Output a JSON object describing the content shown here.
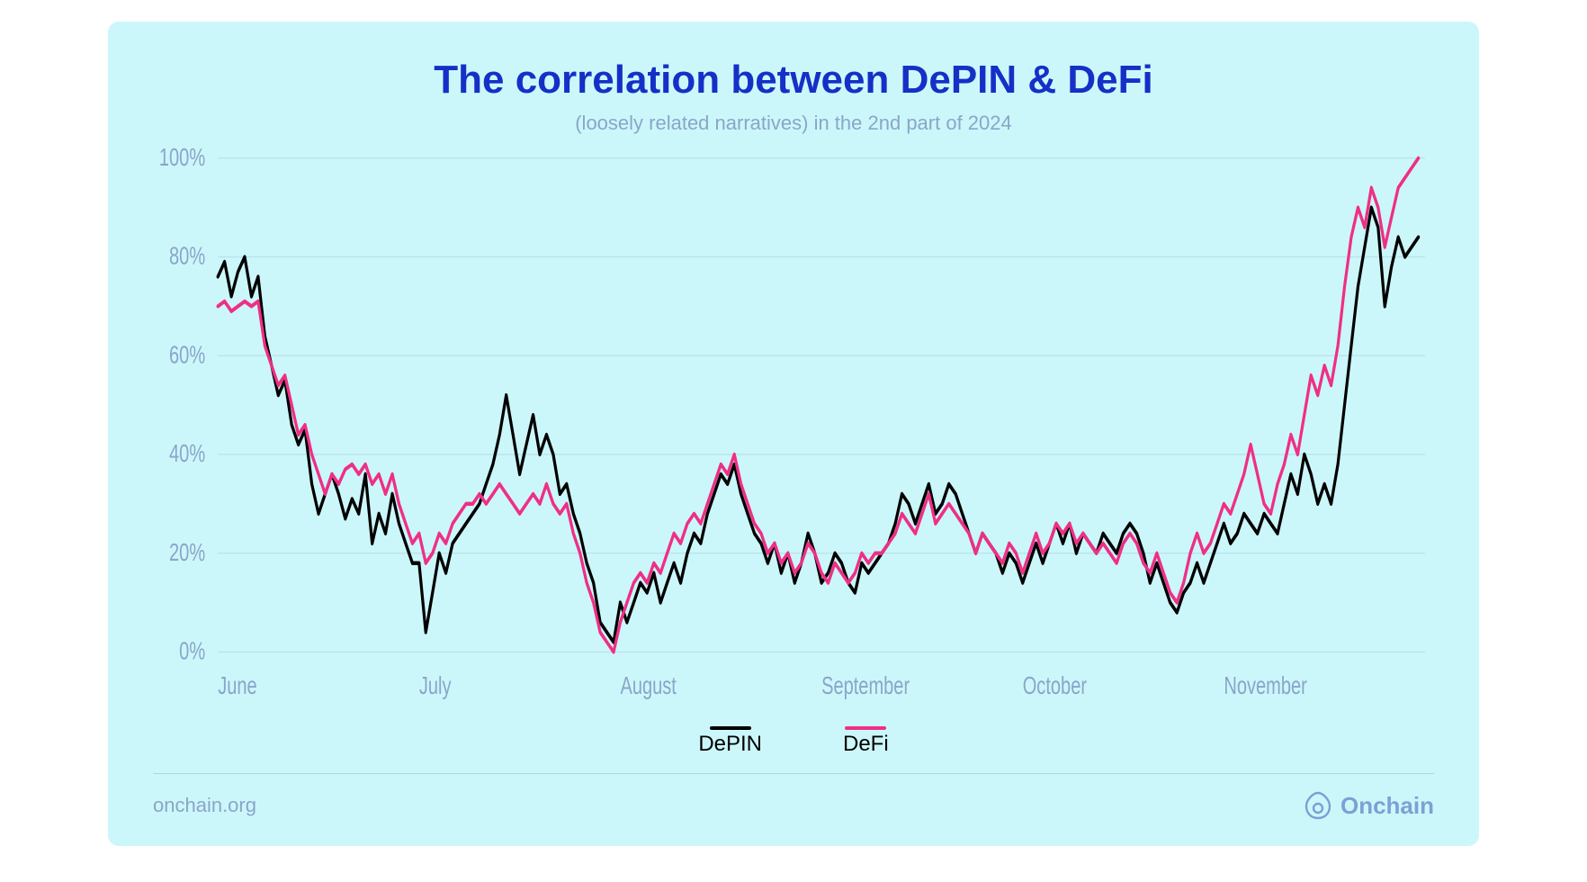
{
  "card": {
    "background_color": "#ccf7fa",
    "title": "The correlation between DePIN & DeFi",
    "title_color": "#1530c7",
    "title_fontsize": 44,
    "subtitle": "(loosely related narratives) in the 2nd part of 2024",
    "subtitle_color": "#8aa5c9",
    "subtitle_fontsize": 22
  },
  "chart": {
    "type": "line",
    "ylim": [
      0,
      100
    ],
    "ytick_step": 20,
    "y_ticks": [
      0,
      20,
      40,
      60,
      80,
      100
    ],
    "y_tick_labels": [
      "0%",
      "20%",
      "40%",
      "60%",
      "80%",
      "100%"
    ],
    "x_categories": [
      "June",
      "July",
      "August",
      "September",
      "October",
      "November"
    ],
    "x_positions": [
      0,
      30,
      60,
      90,
      120,
      150
    ],
    "x_max_index": 180,
    "grid_color": "#7f9cc5",
    "axis_label_color": "#8aa5c9",
    "axis_label_fontsize": 20,
    "line_width": 3.2,
    "series": [
      {
        "name": "DePIN",
        "color": "#000000",
        "values": [
          76,
          79,
          72,
          77,
          80,
          72,
          76,
          64,
          58,
          52,
          55,
          46,
          42,
          45,
          34,
          28,
          32,
          36,
          32,
          27,
          31,
          28,
          36,
          22,
          28,
          24,
          32,
          26,
          22,
          18,
          18,
          4,
          12,
          20,
          16,
          22,
          24,
          26,
          28,
          30,
          34,
          38,
          44,
          52,
          44,
          36,
          42,
          48,
          40,
          44,
          40,
          32,
          34,
          28,
          24,
          18,
          14,
          6,
          4,
          2,
          10,
          6,
          10,
          14,
          12,
          16,
          10,
          14,
          18,
          14,
          20,
          24,
          22,
          28,
          32,
          36,
          34,
          38,
          32,
          28,
          24,
          22,
          18,
          22,
          16,
          20,
          14,
          18,
          24,
          20,
          14,
          16,
          20,
          18,
          14,
          12,
          18,
          16,
          18,
          20,
          22,
          26,
          32,
          30,
          26,
          30,
          34,
          28,
          30,
          34,
          32,
          28,
          24,
          20,
          24,
          22,
          20,
          16,
          20,
          18,
          14,
          18,
          22,
          18,
          22,
          26,
          22,
          26,
          20,
          24,
          22,
          20,
          24,
          22,
          20,
          24,
          26,
          24,
          20,
          14,
          18,
          14,
          10,
          8,
          12,
          14,
          18,
          14,
          18,
          22,
          26,
          22,
          24,
          28,
          26,
          24,
          28,
          26,
          24,
          30,
          36,
          32,
          40,
          36,
          30,
          34,
          30,
          38,
          50,
          62,
          74,
          82,
          90,
          86,
          70,
          78,
          84,
          80,
          82,
          84
        ]
      },
      {
        "name": "DeFi",
        "color": "#ef2f86",
        "values": [
          70,
          71,
          69,
          70,
          71,
          70,
          71,
          62,
          58,
          54,
          56,
          50,
          44,
          46,
          40,
          36,
          32,
          36,
          34,
          37,
          38,
          36,
          38,
          34,
          36,
          32,
          36,
          30,
          26,
          22,
          24,
          18,
          20,
          24,
          22,
          26,
          28,
          30,
          30,
          32,
          30,
          32,
          34,
          32,
          30,
          28,
          30,
          32,
          30,
          34,
          30,
          28,
          30,
          24,
          20,
          14,
          10,
          4,
          2,
          0,
          6,
          10,
          14,
          16,
          14,
          18,
          16,
          20,
          24,
          22,
          26,
          28,
          26,
          30,
          34,
          38,
          36,
          40,
          34,
          30,
          26,
          24,
          20,
          22,
          18,
          20,
          16,
          18,
          22,
          20,
          16,
          14,
          18,
          16,
          14,
          16,
          20,
          18,
          20,
          20,
          22,
          24,
          28,
          26,
          24,
          28,
          32,
          26,
          28,
          30,
          28,
          26,
          24,
          20,
          24,
          22,
          20,
          18,
          22,
          20,
          16,
          20,
          24,
          20,
          22,
          26,
          24,
          26,
          22,
          24,
          22,
          20,
          22,
          20,
          18,
          22,
          24,
          22,
          18,
          16,
          20,
          16,
          12,
          10,
          14,
          20,
          24,
          20,
          22,
          26,
          30,
          28,
          32,
          36,
          42,
          36,
          30,
          28,
          34,
          38,
          44,
          40,
          48,
          56,
          52,
          58,
          54,
          62,
          74,
          84,
          90,
          86,
          94,
          90,
          82,
          88,
          94,
          96,
          98,
          100
        ]
      }
    ]
  },
  "legend": {
    "items": [
      {
        "label": "DePIN",
        "color": "#000000"
      },
      {
        "label": "DeFi",
        "color": "#ef2f86"
      }
    ],
    "label_fontsize": 24
  },
  "footer": {
    "source": "onchain.org",
    "brand_name": "Onchain",
    "text_color": "#8aa5c9",
    "brand_color": "#7da0d4",
    "divider_color": "rgba(120,150,190,0.35)"
  }
}
